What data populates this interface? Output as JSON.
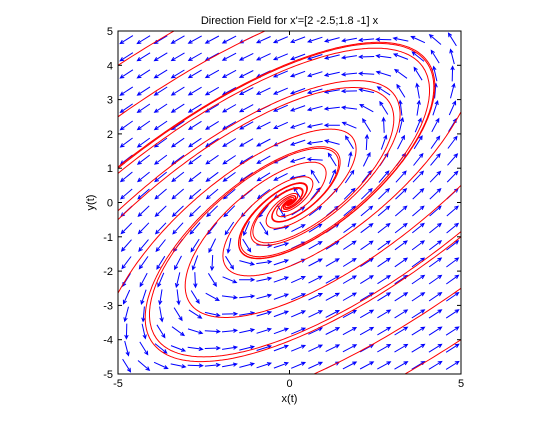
{
  "chart_data": {
    "type": "quiver",
    "title": "Direction Field for x'=[2 -2.5;1.8 -1] x",
    "xlabel": "x(t)",
    "ylabel": "y(t)",
    "xlim": [
      -5,
      5
    ],
    "ylim": [
      -5,
      5
    ],
    "xticks": [
      -5,
      0,
      5
    ],
    "yticks": [
      -5,
      -4,
      -3,
      -2,
      -1,
      0,
      1,
      2,
      3,
      4,
      5
    ],
    "matrix": [
      [
        2,
        -2.5
      ],
      [
        1.8,
        -1
      ]
    ],
    "grid": false,
    "field": {
      "x_start": -4.75,
      "x_step": 0.5,
      "nx": 20,
      "y_start": -4.75,
      "y_step": 0.5,
      "ny": 20,
      "color": "#0000ff"
    },
    "trajectories": {
      "color": "#ff0000",
      "initial_points": [
        [
          -5,
          1
        ],
        [
          -5,
          2.5
        ],
        [
          -5,
          4
        ],
        [
          -5,
          -0.5
        ],
        [
          5,
          -1
        ],
        [
          5,
          -2.5
        ],
        [
          5,
          -4
        ],
        [
          5,
          0.5
        ],
        [
          2.5,
          4.5
        ],
        [
          -2.5,
          -4.5
        ],
        [
          0.5,
          0.5
        ],
        [
          -1,
          -0.5
        ]
      ]
    }
  }
}
